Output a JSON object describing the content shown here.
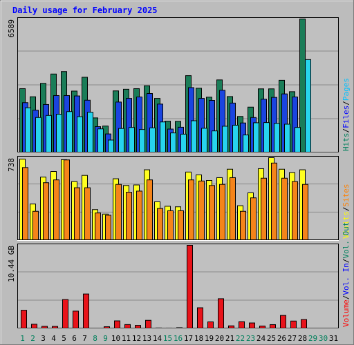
{
  "chart_data": [
    {
      "type": "bar",
      "title": "Daily usage for February 2025",
      "panel": "hits-files-pages",
      "max_label": "6589",
      "ylim": [
        0,
        6589
      ],
      "categories": [
        "1",
        "2",
        "3",
        "4",
        "5",
        "6",
        "7",
        "8",
        "9",
        "10",
        "11",
        "12",
        "13",
        "14",
        "15",
        "16",
        "17",
        "18",
        "19",
        "20",
        "21",
        "22",
        "23",
        "24",
        "25",
        "26",
        "27",
        "28",
        "29",
        "30",
        "31"
      ],
      "weekend_days": [
        "1",
        "2",
        "8",
        "9",
        "15",
        "16",
        "22",
        "23",
        "29",
        "30"
      ],
      "legend": [
        {
          "text": "Hits",
          "color": "#00805c"
        },
        {
          "text": "Files",
          "color": "#0000ff"
        },
        {
          "text": "Pages",
          "color": "#00c0ff"
        }
      ],
      "separator": "/",
      "series": [
        {
          "name": "Hits",
          "color": "#1a7d58",
          "values": [
            3160,
            2760,
            3420,
            3880,
            4000,
            3040,
            3720,
            1720,
            1320,
            3050,
            3130,
            3160,
            3300,
            2680,
            1560,
            1550,
            3800,
            3180,
            2740,
            3590,
            2770,
            1790,
            2250,
            3150,
            3150,
            3570,
            3010,
            6589,
            0,
            0,
            0
          ]
        },
        {
          "name": "Files",
          "color": "#1a44e0",
          "values": [
            2470,
            2100,
            2380,
            2820,
            2820,
            2800,
            2590,
            1290,
            930,
            2500,
            2680,
            2750,
            2920,
            2400,
            1170,
            1260,
            3210,
            2680,
            2580,
            3080,
            2450,
            1470,
            1740,
            2640,
            2730,
            2900,
            2750,
            0,
            0,
            0,
            0
          ]
        },
        {
          "name": "Pages",
          "color": "#27d4ee",
          "values": [
            2220,
            1740,
            1840,
            1900,
            2030,
            1780,
            2000,
            1180,
            630,
            1200,
            1250,
            1150,
            1230,
            1520,
            980,
            920,
            1580,
            1210,
            1080,
            1310,
            1360,
            880,
            1480,
            1490,
            1450,
            1410,
            1250,
            4590,
            0,
            0,
            0
          ]
        }
      ]
    },
    {
      "type": "bar",
      "panel": "visits-sites",
      "max_label": "738",
      "ylim": [
        0,
        738
      ],
      "legend": [
        {
          "text": "Visits",
          "color": "#ffff00"
        },
        {
          "text": "Sites",
          "color": "#ff8000"
        }
      ],
      "series": [
        {
          "name": "Visits",
          "color": "#ffff20",
          "values": [
            725,
            325,
            565,
            615,
            720,
            525,
            580,
            275,
            235,
            550,
            490,
            495,
            630,
            345,
            305,
            300,
            610,
            585,
            535,
            560,
            635,
            310,
            425,
            640,
            738,
            635,
            605,
            630,
            0,
            0,
            0
          ]
        },
        {
          "name": "Sites",
          "color": "#f5841a",
          "values": [
            650,
            260,
            515,
            540,
            718,
            470,
            470,
            245,
            225,
            500,
            430,
            440,
            540,
            285,
            265,
            265,
            540,
            530,
            490,
            500,
            560,
            260,
            380,
            555,
            690,
            555,
            525,
            500,
            0,
            0,
            0
          ]
        }
      ]
    },
    {
      "type": "bar",
      "panel": "volume",
      "max_label": "10.44 GB",
      "ylim": [
        0,
        10.44
      ],
      "legend": [
        {
          "text": "Volume",
          "color": "#ff0000"
        },
        {
          "text": "Vol. In",
          "color": "#0000ff"
        },
        {
          "text": "Vol. Out",
          "color": "#00805c"
        }
      ],
      "series": [
        {
          "name": "Volume",
          "color": "#e8131a",
          "values": [
            2.32,
            0.57,
            0.31,
            0.3,
            3.66,
            2.21,
            4.35,
            0.08,
            0.26,
            0.99,
            0.53,
            0.42,
            1.06,
            0.1,
            0.09,
            0.13,
            10.44,
            2.63,
            0.87,
            3.76,
            0.37,
            0.89,
            0.73,
            0.35,
            0.52,
            1.67,
            0.97,
            1.16,
            0,
            0,
            0
          ]
        }
      ]
    }
  ]
}
